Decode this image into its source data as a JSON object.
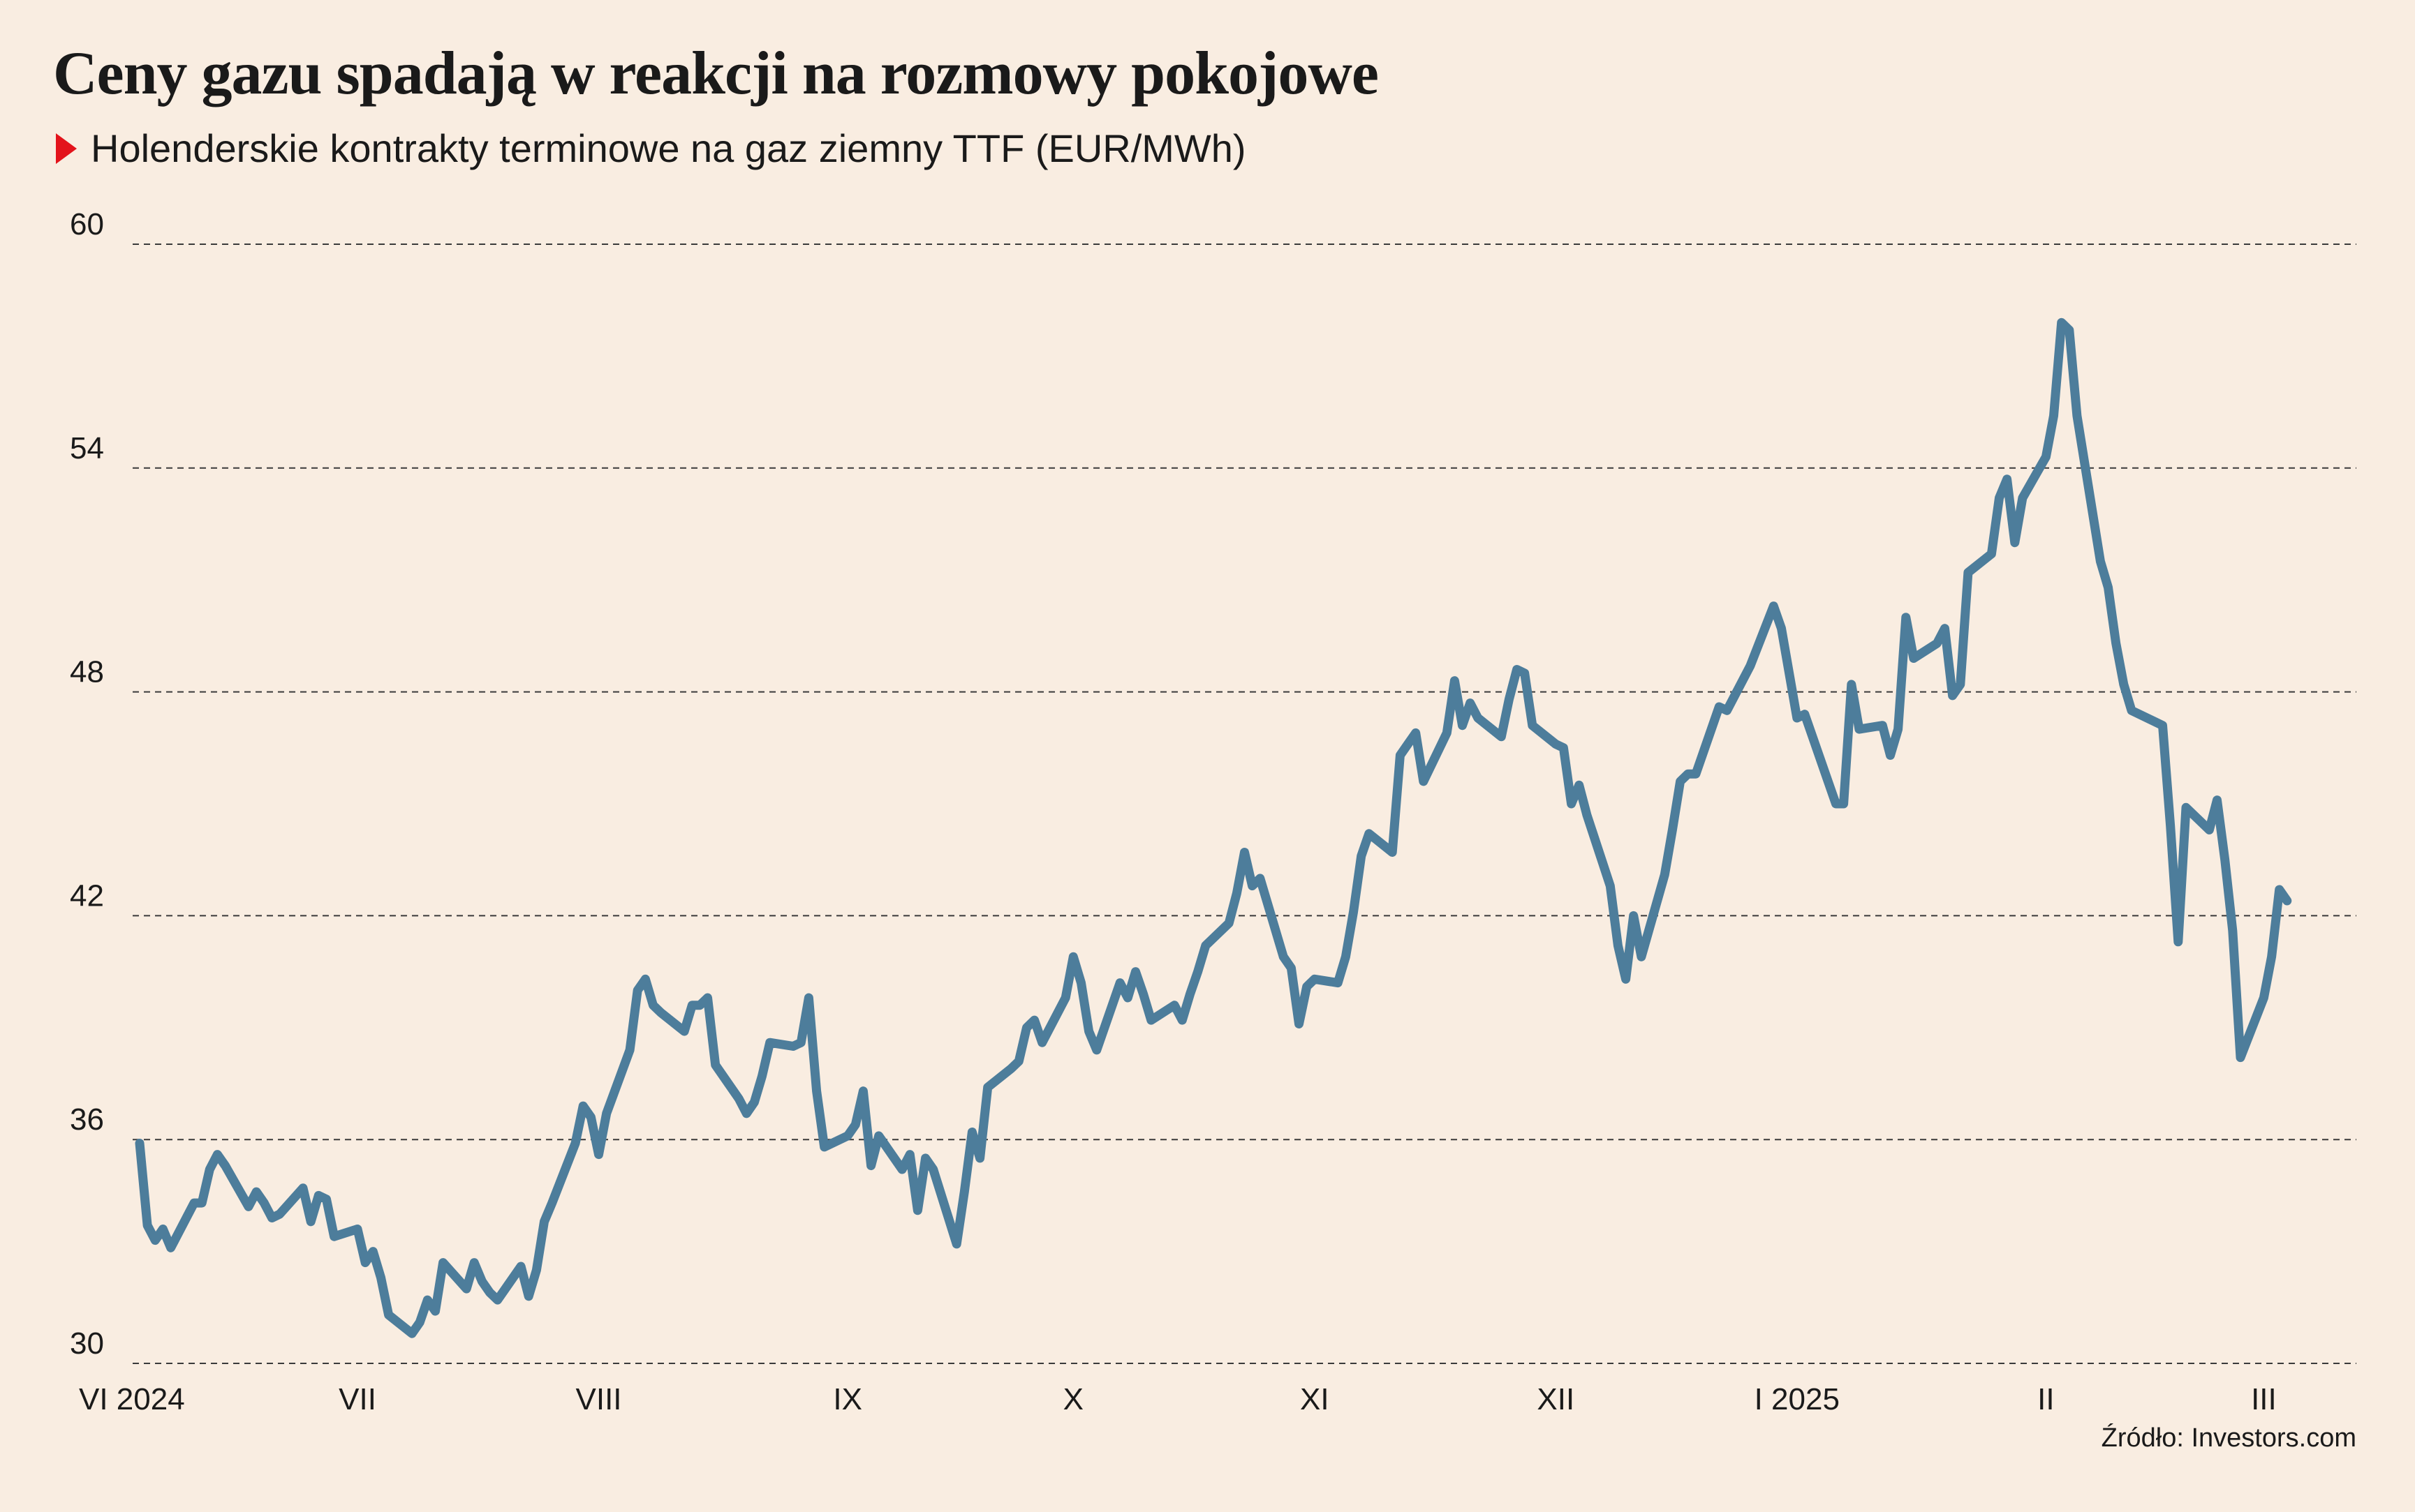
{
  "header": {
    "title": "Ceny gazu spadają w reakcji na rozmowy pokojowe",
    "subtitle": "Holenderskie kontrakty terminowe na gaz ziemny TTF (EUR/MWh)",
    "source": "Źródło: Investors.com"
  },
  "colors": {
    "background": "#f9ede1",
    "line": "#4d7d9b",
    "grid": "#3a3a3a",
    "marker": "#e3131b"
  },
  "chart_data": {
    "type": "line",
    "title": "Ceny gazu spadają w reakcji na rozmowy pokojowe",
    "subtitle": "Holenderskie kontrakty terminowe na gaz ziemny TTF (EUR/MWh)",
    "xlabel": "",
    "ylabel": "",
    "ylim": [
      30,
      60
    ],
    "yticks": [
      30,
      36,
      42,
      48,
      54,
      60
    ],
    "ytick_labels": [
      "30",
      "36",
      "42",
      "48",
      "54",
      "60"
    ],
    "grid": "horizontal dashed",
    "x_start": "2024-06-03",
    "x_end": "2025-03-14",
    "xticks": [
      {
        "date": "2024-06-03",
        "label": "VI 2024"
      },
      {
        "date": "2024-07-01",
        "label": "VII"
      },
      {
        "date": "2024-08-01",
        "label": "VIII"
      },
      {
        "date": "2024-09-02",
        "label": "IX"
      },
      {
        "date": "2024-10-01",
        "label": "X"
      },
      {
        "date": "2024-11-01",
        "label": "XI"
      },
      {
        "date": "2024-12-02",
        "label": "XII"
      },
      {
        "date": "2025-01-02",
        "label": "I 2025"
      },
      {
        "date": "2025-02-03",
        "label": "II"
      },
      {
        "date": "2025-03-03",
        "label": "III"
      }
    ],
    "series": [
      {
        "values": [
          [
            "2024-06-03",
            35.9
          ],
          [
            "2024-06-04",
            33.7
          ],
          [
            "2024-06-05",
            33.3
          ],
          [
            "2024-06-06",
            33.6
          ],
          [
            "2024-06-07",
            33.1
          ],
          [
            "2024-06-10",
            34.3
          ],
          [
            "2024-06-11",
            34.3
          ],
          [
            "2024-06-12",
            35.2
          ],
          [
            "2024-06-13",
            35.6
          ],
          [
            "2024-06-14",
            35.3
          ],
          [
            "2024-06-17",
            34.2
          ],
          [
            "2024-06-18",
            34.6
          ],
          [
            "2024-06-19",
            34.3
          ],
          [
            "2024-06-20",
            33.9
          ],
          [
            "2024-06-21",
            34.0
          ],
          [
            "2024-06-24",
            34.7
          ],
          [
            "2024-06-25",
            33.8
          ],
          [
            "2024-06-26",
            34.5
          ],
          [
            "2024-06-27",
            34.4
          ],
          [
            "2024-06-28",
            33.4
          ],
          [
            "2024-07-01",
            33.6
          ],
          [
            "2024-07-02",
            32.7
          ],
          [
            "2024-07-03",
            33.0
          ],
          [
            "2024-07-04",
            32.3
          ],
          [
            "2024-07-05",
            31.3
          ],
          [
            "2024-07-08",
            30.8
          ],
          [
            "2024-07-09",
            31.1
          ],
          [
            "2024-07-10",
            31.7
          ],
          [
            "2024-07-11",
            31.4
          ],
          [
            "2024-07-12",
            32.7
          ],
          [
            "2024-07-15",
            32.0
          ],
          [
            "2024-07-16",
            32.7
          ],
          [
            "2024-07-17",
            32.2
          ],
          [
            "2024-07-18",
            31.9
          ],
          [
            "2024-07-19",
            31.7
          ],
          [
            "2024-07-22",
            32.6
          ],
          [
            "2024-07-23",
            31.8
          ],
          [
            "2024-07-24",
            32.5
          ],
          [
            "2024-07-25",
            33.8
          ],
          [
            "2024-07-26",
            34.3
          ],
          [
            "2024-07-29",
            35.9
          ],
          [
            "2024-07-30",
            36.9
          ],
          [
            "2024-07-31",
            36.6
          ],
          [
            "2024-08-01",
            35.6
          ],
          [
            "2024-08-02",
            36.7
          ],
          [
            "2024-08-05",
            38.4
          ],
          [
            "2024-08-06",
            40.0
          ],
          [
            "2024-08-07",
            40.3
          ],
          [
            "2024-08-08",
            39.6
          ],
          [
            "2024-08-09",
            39.4
          ],
          [
            "2024-08-12",
            38.9
          ],
          [
            "2024-08-13",
            39.6
          ],
          [
            "2024-08-14",
            39.6
          ],
          [
            "2024-08-15",
            39.8
          ],
          [
            "2024-08-16",
            38.0
          ],
          [
            "2024-08-19",
            37.1
          ],
          [
            "2024-08-20",
            36.7
          ],
          [
            "2024-08-21",
            37.0
          ],
          [
            "2024-08-22",
            37.7
          ],
          [
            "2024-08-23",
            38.6
          ],
          [
            "2024-08-26",
            38.5
          ],
          [
            "2024-08-27",
            38.6
          ],
          [
            "2024-08-28",
            39.8
          ],
          [
            "2024-08-29",
            37.3
          ],
          [
            "2024-08-30",
            35.8
          ],
          [
            "2024-09-02",
            36.1
          ],
          [
            "2024-09-03",
            36.4
          ],
          [
            "2024-09-04",
            37.3
          ],
          [
            "2024-09-05",
            35.3
          ],
          [
            "2024-09-06",
            36.1
          ],
          [
            "2024-09-09",
            35.2
          ],
          [
            "2024-09-10",
            35.6
          ],
          [
            "2024-09-11",
            34.1
          ],
          [
            "2024-09-12",
            35.5
          ],
          [
            "2024-09-13",
            35.2
          ],
          [
            "2024-09-16",
            33.2
          ],
          [
            "2024-09-17",
            34.6
          ],
          [
            "2024-09-18",
            36.2
          ],
          [
            "2024-09-19",
            35.5
          ],
          [
            "2024-09-20",
            37.4
          ],
          [
            "2024-09-23",
            37.9
          ],
          [
            "2024-09-24",
            38.1
          ],
          [
            "2024-09-25",
            39.0
          ],
          [
            "2024-09-26",
            39.2
          ],
          [
            "2024-09-27",
            38.6
          ],
          [
            "2024-09-30",
            39.8
          ],
          [
            "2024-10-01",
            40.9
          ],
          [
            "2024-10-02",
            40.2
          ],
          [
            "2024-10-03",
            38.9
          ],
          [
            "2024-10-04",
            38.4
          ],
          [
            "2024-10-07",
            40.2
          ],
          [
            "2024-10-08",
            39.8
          ],
          [
            "2024-10-09",
            40.5
          ],
          [
            "2024-10-10",
            39.9
          ],
          [
            "2024-10-11",
            39.2
          ],
          [
            "2024-10-14",
            39.6
          ],
          [
            "2024-10-15",
            39.2
          ],
          [
            "2024-10-16",
            39.9
          ],
          [
            "2024-10-17",
            40.5
          ],
          [
            "2024-10-18",
            41.2
          ],
          [
            "2024-10-21",
            41.8
          ],
          [
            "2024-10-22",
            42.6
          ],
          [
            "2024-10-23",
            43.7
          ],
          [
            "2024-10-24",
            42.8
          ],
          [
            "2024-10-25",
            43.0
          ],
          [
            "2024-10-28",
            40.9
          ],
          [
            "2024-10-29",
            40.6
          ],
          [
            "2024-10-30",
            39.1
          ],
          [
            "2024-10-31",
            40.1
          ],
          [
            "2024-11-01",
            40.3
          ],
          [
            "2024-11-04",
            40.2
          ],
          [
            "2024-11-05",
            40.9
          ],
          [
            "2024-11-06",
            42.1
          ],
          [
            "2024-11-07",
            43.6
          ],
          [
            "2024-11-08",
            44.2
          ],
          [
            "2024-11-11",
            43.7
          ],
          [
            "2024-11-12",
            46.3
          ],
          [
            "2024-11-13",
            46.6
          ],
          [
            "2024-11-14",
            46.9
          ],
          [
            "2024-11-15",
            45.6
          ],
          [
            "2024-11-18",
            46.9
          ],
          [
            "2024-11-19",
            48.3
          ],
          [
            "2024-11-20",
            47.1
          ],
          [
            "2024-11-21",
            47.7
          ],
          [
            "2024-11-22",
            47.3
          ],
          [
            "2024-11-25",
            46.8
          ],
          [
            "2024-11-26",
            47.8
          ],
          [
            "2024-11-27",
            48.6
          ],
          [
            "2024-11-28",
            48.5
          ],
          [
            "2024-11-29",
            47.1
          ],
          [
            "2024-12-02",
            46.6
          ],
          [
            "2024-12-03",
            46.5
          ],
          [
            "2024-12-04",
            45.0
          ],
          [
            "2024-12-05",
            45.5
          ],
          [
            "2024-12-06",
            44.7
          ],
          [
            "2024-12-09",
            42.8
          ],
          [
            "2024-12-10",
            41.2
          ],
          [
            "2024-12-11",
            40.3
          ],
          [
            "2024-12-12",
            42.0
          ],
          [
            "2024-12-13",
            40.9
          ],
          [
            "2024-12-16",
            43.1
          ],
          [
            "2024-12-17",
            44.3
          ],
          [
            "2024-12-18",
            45.6
          ],
          [
            "2024-12-19",
            45.8
          ],
          [
            "2024-12-20",
            45.8
          ],
          [
            "2024-12-23",
            47.6
          ],
          [
            "2024-12-24",
            47.5
          ],
          [
            "2024-12-27",
            48.7
          ],
          [
            "2024-12-30",
            50.3
          ],
          [
            "2024-12-31",
            49.7
          ],
          [
            "2025-01-02",
            47.3
          ],
          [
            "2025-01-03",
            47.4
          ],
          [
            "2025-01-06",
            45.6
          ],
          [
            "2025-01-07",
            45.0
          ],
          [
            "2025-01-08",
            45.0
          ],
          [
            "2025-01-09",
            48.2
          ],
          [
            "2025-01-10",
            47.0
          ],
          [
            "2025-01-13",
            47.1
          ],
          [
            "2025-01-14",
            46.3
          ],
          [
            "2025-01-15",
            47.0
          ],
          [
            "2025-01-16",
            50.0
          ],
          [
            "2025-01-17",
            48.9
          ],
          [
            "2025-01-20",
            49.3
          ],
          [
            "2025-01-21",
            49.7
          ],
          [
            "2025-01-22",
            47.9
          ],
          [
            "2025-01-23",
            48.2
          ],
          [
            "2025-01-24",
            51.2
          ],
          [
            "2025-01-27",
            51.7
          ],
          [
            "2025-01-28",
            53.2
          ],
          [
            "2025-01-29",
            53.7
          ],
          [
            "2025-01-30",
            52.0
          ],
          [
            "2025-01-31",
            53.2
          ],
          [
            "2025-02-03",
            54.3
          ],
          [
            "2025-02-04",
            55.4
          ],
          [
            "2025-02-05",
            57.9
          ],
          [
            "2025-02-06",
            57.7
          ],
          [
            "2025-02-07",
            55.4
          ],
          [
            "2025-02-10",
            51.5
          ],
          [
            "2025-02-11",
            50.8
          ],
          [
            "2025-02-12",
            49.3
          ],
          [
            "2025-02-13",
            48.2
          ],
          [
            "2025-02-14",
            47.5
          ],
          [
            "2025-02-17",
            47.2
          ],
          [
            "2025-02-18",
            47.1
          ],
          [
            "2025-02-19",
            44.4
          ],
          [
            "2025-02-20",
            41.3
          ],
          [
            "2025-02-21",
            44.9
          ],
          [
            "2025-02-24",
            44.3
          ],
          [
            "2025-02-25",
            45.1
          ],
          [
            "2025-02-26",
            43.5
          ],
          [
            "2025-02-27",
            41.6
          ],
          [
            "2025-02-28",
            38.2
          ],
          [
            "2025-03-03",
            39.8
          ],
          [
            "2025-03-04",
            40.9
          ],
          [
            "2025-03-05",
            42.7
          ],
          [
            "2025-03-06",
            42.4
          ]
        ]
      }
    ]
  }
}
